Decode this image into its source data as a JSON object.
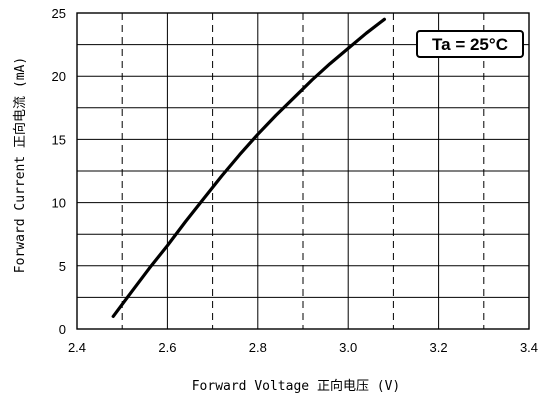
{
  "chart_data": {
    "type": "line",
    "title": "",
    "xlabel": "Forward Voltage 正向电压 (V)",
    "ylabel": "Forward Current 正向电流 (mA)",
    "xlim": [
      2.4,
      3.4
    ],
    "ylim": [
      0,
      25
    ],
    "xticks": [
      2.4,
      2.6,
      2.8,
      3.0,
      3.2,
      3.4
    ],
    "xtick_labels": [
      "2.4",
      "2.6",
      "2.8",
      "3.0",
      "3.2",
      "3.4"
    ],
    "yticks": [
      0,
      5,
      10,
      15,
      20,
      25
    ],
    "ytick_labels": [
      "0",
      "5",
      "10",
      "15",
      "20",
      "25"
    ],
    "minor_x_dashed": [
      2.5,
      2.7,
      2.9,
      3.1,
      3.3
    ],
    "minor_y_solid": [
      2.5,
      7.5,
      12.5,
      17.5,
      22.5
    ],
    "grid": true,
    "annotation": "Ta = 25°C",
    "annotation_position": "top-right",
    "line_color": "#000000",
    "series": [
      {
        "x": [
          2.48,
          2.52,
          2.56,
          2.6,
          2.64,
          2.68,
          2.72,
          2.76,
          2.8,
          2.84,
          2.88,
          2.92,
          2.96,
          3.0,
          3.04,
          3.08
        ],
        "y": [
          1.0,
          2.9,
          4.8,
          6.6,
          8.5,
          10.3,
          12.1,
          13.8,
          15.4,
          16.9,
          18.3,
          19.7,
          21.0,
          22.2,
          23.4,
          24.5
        ]
      }
    ]
  }
}
